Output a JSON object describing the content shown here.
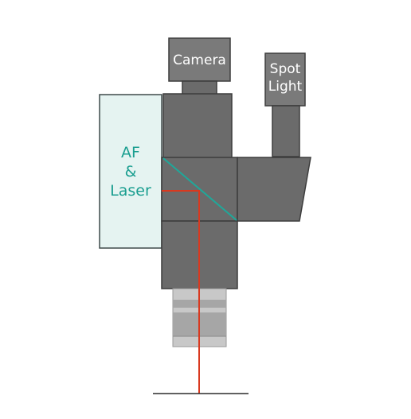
{
  "labels": {
    "camera": "Camera",
    "spot_light": [
      "Spot",
      "Light"
    ],
    "af_laser": [
      "AF",
      "&",
      "Laser"
    ]
  },
  "colors": {
    "body": "#6b6b6b",
    "body_stroke": "#3d3d3d",
    "light_box": "#7a7a7a",
    "af_fill": "#e5f3f1",
    "af_stroke": "#3f4a4a",
    "af_text": "#1a9e90",
    "beam_splitter": "#1fa89a",
    "laser": "#d9391f",
    "objective_outer": "#c8c8c8",
    "objective_inner": "#a6a6a6",
    "baseline": "#2b2b2b"
  }
}
